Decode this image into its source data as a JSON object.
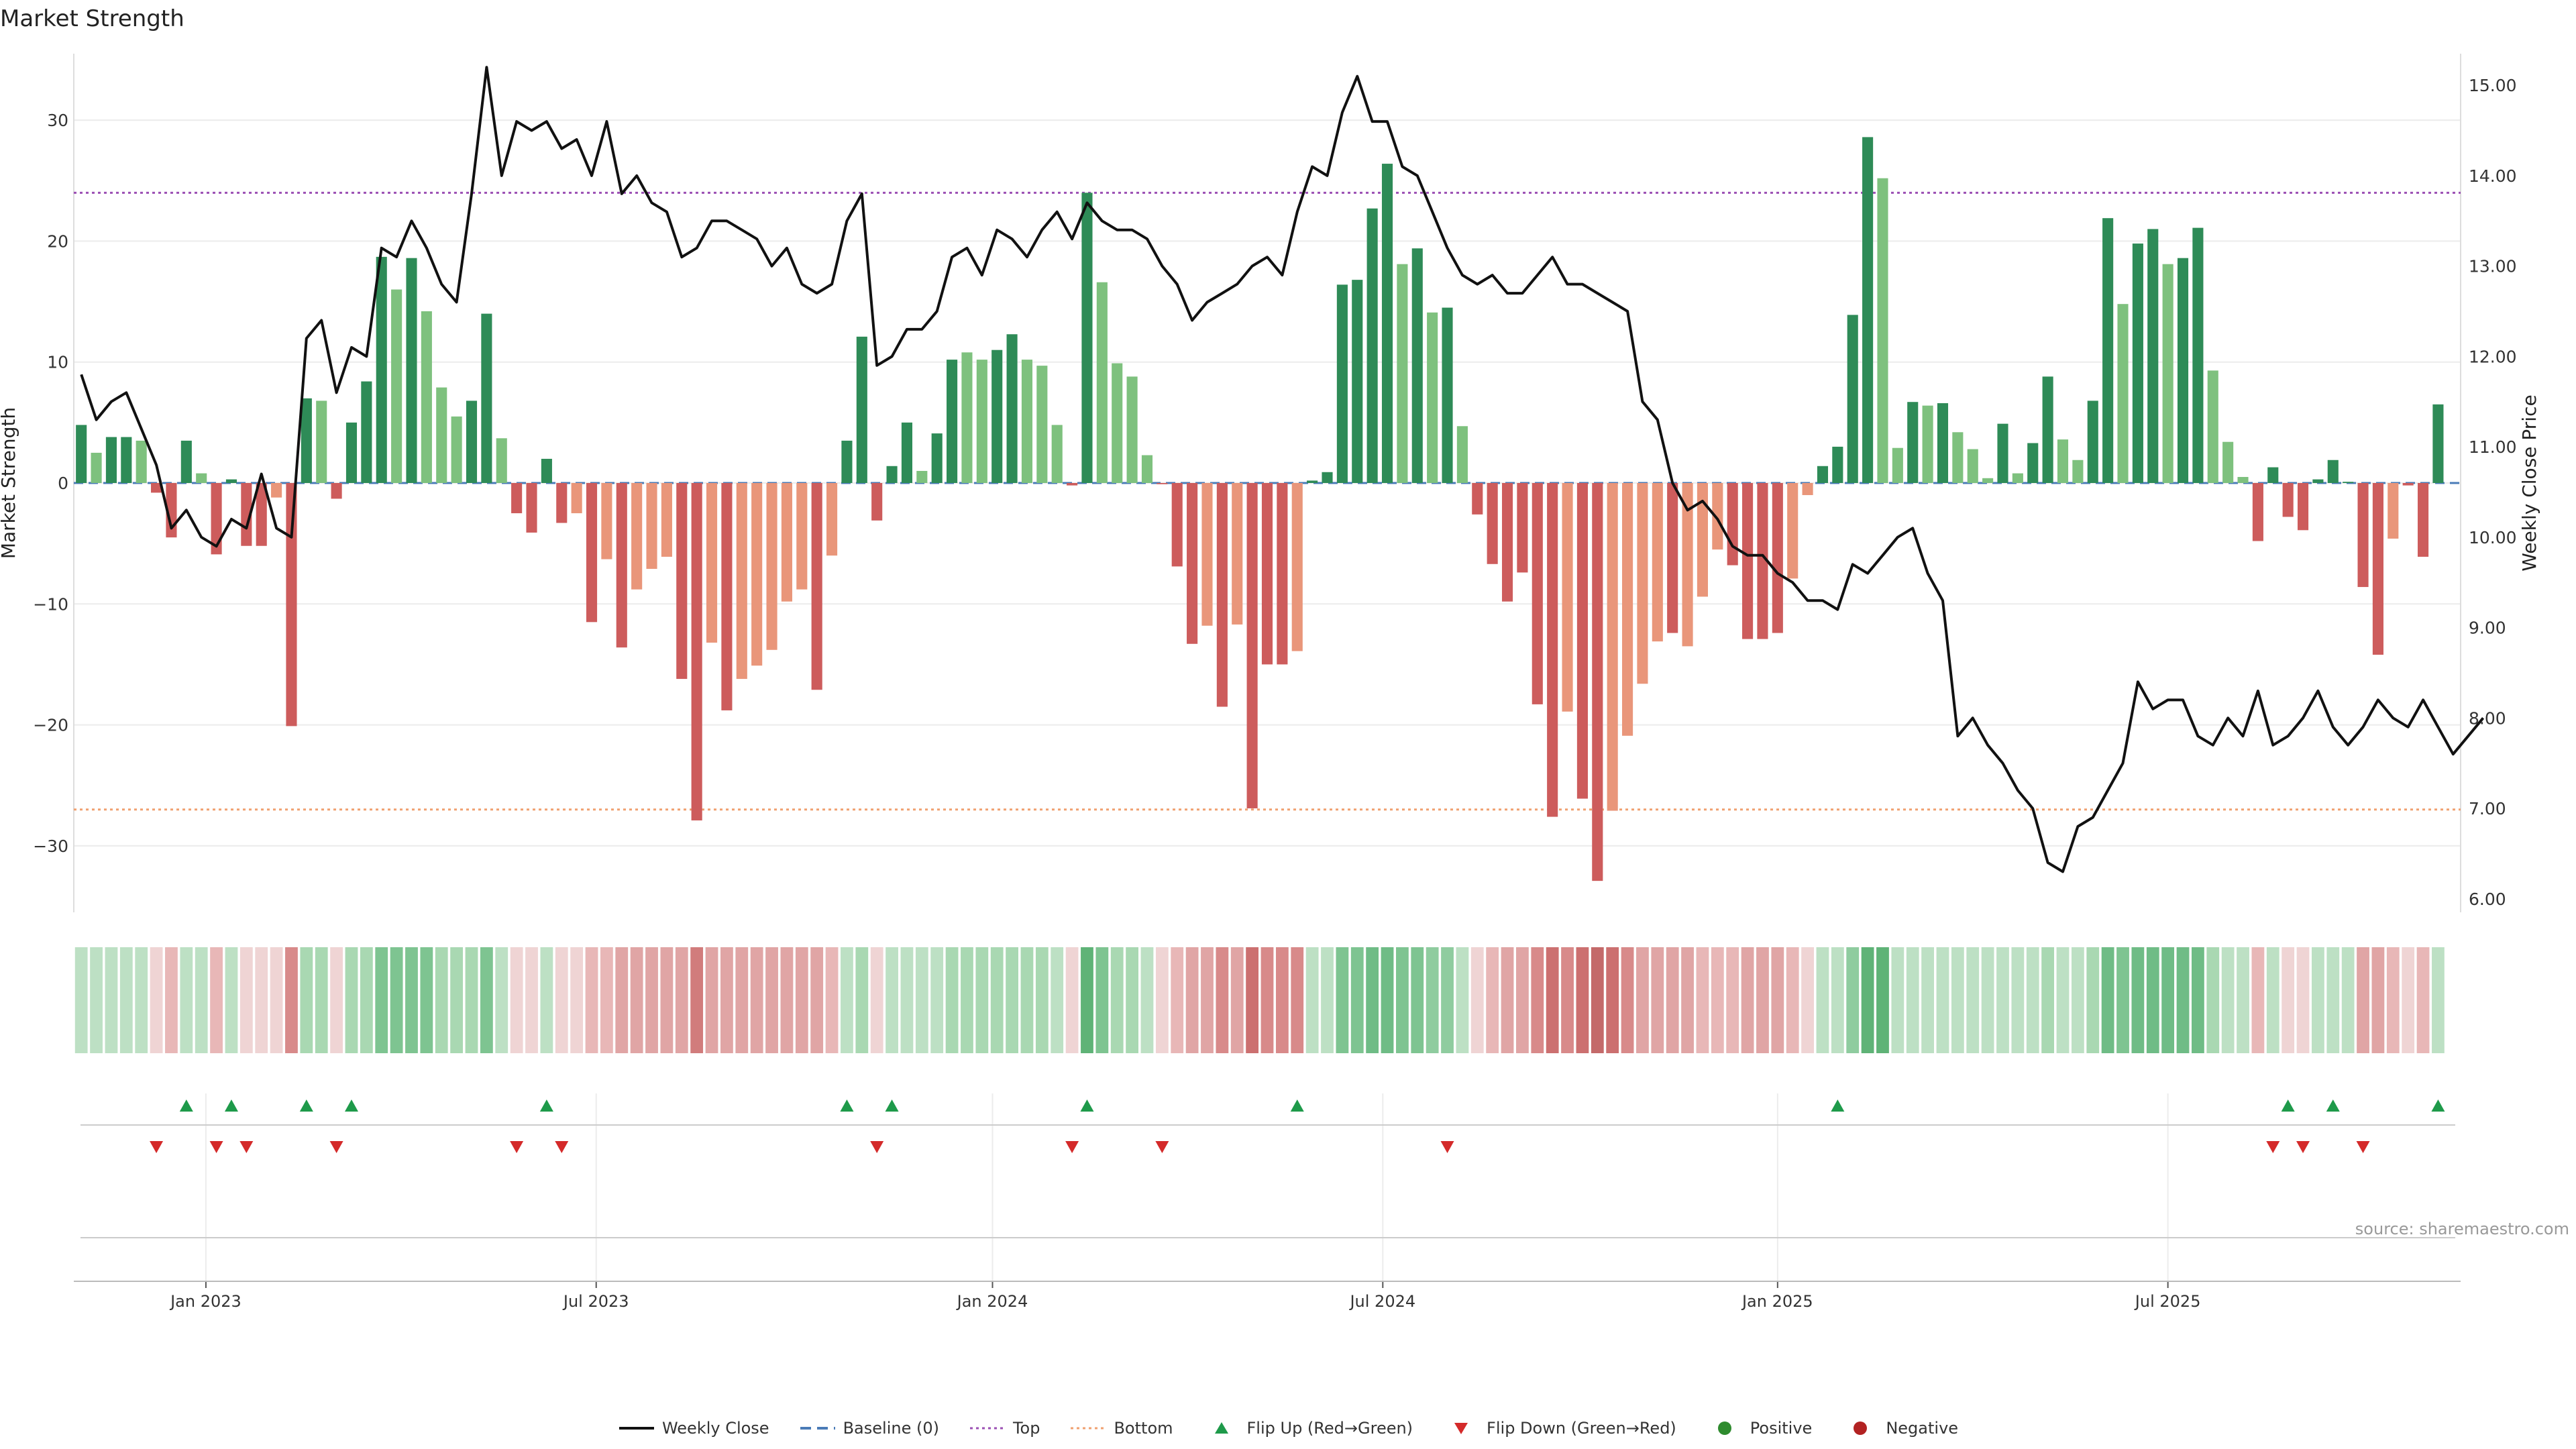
{
  "chart_data": {
    "type": "bar",
    "title": "Market Strength",
    "source": "source: sharemaestro.com",
    "y_left_label": "Market Strength",
    "y_right_label": "Weekly Close Price",
    "y_left_ticks": [
      30,
      20,
      10,
      0,
      -10,
      -20,
      -30
    ],
    "y_left_tick_labels": [
      "30",
      "20",
      "10",
      "0",
      "−10",
      "−20",
      "−30"
    ],
    "y_right_ticks": [
      15,
      14,
      13,
      12,
      11,
      10,
      9,
      8,
      7,
      6
    ],
    "y_right_tick_labels": [
      "15.00",
      "14.00",
      "13.00",
      "12.00",
      "11.00",
      "10.00",
      "9.00",
      "8.00",
      "7.00",
      "6.00"
    ],
    "y_left_range": [
      -35.5,
      35.5
    ],
    "y_right_range": [
      5.85,
      15.35
    ],
    "top_line": 24,
    "bottom_line": -27,
    "x_tick_labels": [
      "Jan 2023",
      "Jul 2023",
      "Jan 2024",
      "Jul 2024",
      "Jan 2025",
      "Jul 2025"
    ],
    "x_tick_weeks": [
      8.3,
      34.3,
      60.7,
      86.7,
      113.0,
      139.0
    ],
    "weeks_count": 159,
    "strength": [
      4.8,
      2.5,
      3.8,
      3.8,
      3.5,
      -0.8,
      -4.5,
      3.5,
      0.8,
      -5.9,
      0.3,
      -5.2,
      -5.2,
      -1.2,
      -20.1,
      7.0,
      6.8,
      -1.3,
      5.0,
      8.4,
      18.7,
      16.0,
      18.6,
      14.2,
      7.9,
      5.5,
      6.8,
      14.0,
      3.7,
      -2.5,
      -4.1,
      2.0,
      -3.3,
      -2.5,
      -11.5,
      -6.3,
      -13.6,
      -8.8,
      -7.1,
      -6.1,
      -16.2,
      -27.9,
      -13.2,
      -18.8,
      -16.2,
      -15.1,
      -13.8,
      -9.8,
      -8.8,
      -17.1,
      -6.0,
      3.5,
      12.1,
      -3.1,
      1.4,
      5.0,
      1.0,
      4.1,
      10.2,
      10.8,
      10.2,
      11.0,
      12.3,
      10.2,
      9.7,
      4.8,
      -0.2,
      24.0,
      16.6,
      9.9,
      8.8,
      2.3,
      -0.1,
      -6.9,
      -13.3,
      -11.8,
      -18.5,
      -11.7,
      -26.9,
      -15.0,
      -15.0,
      -13.9,
      0.2,
      0.9,
      16.4,
      16.8,
      22.7,
      26.4,
      18.1,
      19.4,
      14.1,
      14.5,
      4.7,
      -2.6,
      -6.7,
      -9.8,
      -7.4,
      -18.3,
      -27.6,
      -18.9,
      -26.1,
      -32.9,
      -27.1,
      -20.9,
      -16.6,
      -13.1,
      -12.4,
      -13.5,
      -9.4,
      -5.5,
      -6.8,
      -12.9,
      -12.9,
      -12.4,
      -7.9,
      -1.0,
      1.4,
      3.0,
      13.9,
      28.6,
      25.2,
      2.9,
      6.7,
      6.4,
      6.6,
      4.2,
      2.8,
      0.4,
      4.9,
      0.8,
      3.3,
      8.8,
      3.6,
      1.9,
      6.8,
      21.9,
      14.8,
      19.8,
      21.0,
      18.1,
      18.6,
      21.1,
      9.3,
      3.4,
      0.5,
      -4.8,
      1.3,
      -2.8,
      -3.9,
      0.3,
      1.9,
      0.1,
      -8.6,
      -14.2,
      -4.6,
      -0.2,
      -6.1,
      6.5
    ],
    "strength_colors": [
      "#2e8b57",
      "#7ec17e",
      "#2e8b57",
      "#2e8b57",
      "#7ec17e",
      "#cd5c5c",
      "#cd5c5c",
      "#2e8b57",
      "#7ec17e",
      "#cd5c5c",
      "#2e8b57",
      "#cd5c5c",
      "#cd5c5c",
      "#e9967a",
      "#cd5c5c",
      "#2e8b57",
      "#7ec17e",
      "#cd5c5c",
      "#2e8b57",
      "#2e8b57",
      "#2e8b57",
      "#7ec17e",
      "#2e8b57",
      "#7ec17e",
      "#7ec17e",
      "#7ec17e",
      "#2e8b57",
      "#2e8b57",
      "#7ec17e",
      "#cd5c5c",
      "#cd5c5c",
      "#2e8b57",
      "#cd5c5c",
      "#e9967a",
      "#cd5c5c",
      "#e9967a",
      "#cd5c5c",
      "#e9967a",
      "#e9967a",
      "#e9967a",
      "#cd5c5c",
      "#cd5c5c",
      "#e9967a",
      "#cd5c5c",
      "#e9967a",
      "#e9967a",
      "#e9967a",
      "#e9967a",
      "#e9967a",
      "#cd5c5c",
      "#e9967a",
      "#2e8b57",
      "#2e8b57",
      "#cd5c5c",
      "#2e8b57",
      "#2e8b57",
      "#7ec17e",
      "#2e8b57",
      "#2e8b57",
      "#7ec17e",
      "#7ec17e",
      "#2e8b57",
      "#2e8b57",
      "#7ec17e",
      "#7ec17e",
      "#7ec17e",
      "#cd5c5c",
      "#2e8b57",
      "#7ec17e",
      "#7ec17e",
      "#7ec17e",
      "#7ec17e",
      "#cd5c5c",
      "#cd5c5c",
      "#cd5c5c",
      "#e9967a",
      "#cd5c5c",
      "#e9967a",
      "#cd5c5c",
      "#cd5c5c",
      "#cd5c5c",
      "#e9967a",
      "#2e8b57",
      "#2e8b57",
      "#2e8b57",
      "#2e8b57",
      "#2e8b57",
      "#2e8b57",
      "#7ec17e",
      "#2e8b57",
      "#7ec17e",
      "#2e8b57",
      "#7ec17e",
      "#cd5c5c",
      "#cd5c5c",
      "#cd5c5c",
      "#cd5c5c",
      "#cd5c5c",
      "#cd5c5c",
      "#e9967a",
      "#cd5c5c",
      "#cd5c5c",
      "#e9967a",
      "#e9967a",
      "#e9967a",
      "#e9967a",
      "#cd5c5c",
      "#e9967a",
      "#e9967a",
      "#e9967a",
      "#cd5c5c",
      "#cd5c5c",
      "#cd5c5c",
      "#cd5c5c",
      "#e9967a",
      "#e9967a",
      "#2e8b57",
      "#2e8b57",
      "#2e8b57",
      "#2e8b57",
      "#7ec17e",
      "#7ec17e",
      "#2e8b57",
      "#7ec17e",
      "#2e8b57",
      "#7ec17e",
      "#7ec17e",
      "#7ec17e",
      "#2e8b57",
      "#7ec17e",
      "#2e8b57",
      "#2e8b57",
      "#7ec17e",
      "#7ec17e",
      "#2e8b57",
      "#2e8b57",
      "#7ec17e",
      "#2e8b57",
      "#2e8b57",
      "#7ec17e",
      "#2e8b57",
      "#2e8b57",
      "#7ec17e",
      "#7ec17e",
      "#7ec17e",
      "#cd5c5c",
      "#2e8b57",
      "#cd5c5c",
      "#cd5c5c",
      "#2e8b57",
      "#2e8b57",
      "#2e8b57",
      "#cd5c5c",
      "#cd5c5c",
      "#e9967a",
      "#cd5c5c",
      "#cd5c5c",
      "#2e8b57"
    ],
    "weekly_close": [
      11.8,
      11.3,
      11.5,
      11.6,
      11.2,
      10.8,
      10.1,
      10.3,
      10.0,
      9.9,
      10.2,
      10.1,
      10.7,
      10.1,
      10.0,
      12.2,
      12.4,
      11.6,
      12.1,
      12.0,
      13.2,
      13.1,
      13.5,
      13.2,
      12.8,
      12.6,
      13.8,
      15.2,
      14.0,
      14.6,
      14.5,
      14.6,
      14.3,
      14.4,
      14.0,
      14.6,
      13.8,
      14.0,
      13.7,
      13.6,
      13.1,
      13.2,
      13.5,
      13.5,
      13.4,
      13.3,
      13.0,
      13.2,
      12.8,
      12.7,
      12.8,
      13.5,
      13.8,
      11.9,
      12.0,
      12.3,
      12.3,
      12.5,
      13.1,
      13.2,
      12.9,
      13.4,
      13.3,
      13.1,
      13.4,
      13.6,
      13.3,
      13.7,
      13.5,
      13.4,
      13.4,
      13.3,
      13.0,
      12.8,
      12.4,
      12.6,
      12.7,
      12.8,
      13.0,
      13.1,
      12.9,
      13.6,
      14.1,
      14.0,
      14.7,
      15.1,
      14.6,
      14.6,
      14.1,
      14.0,
      13.6,
      13.2,
      12.9,
      12.8,
      12.9,
      12.7,
      12.7,
      12.9,
      13.1,
      12.8,
      12.8,
      12.7,
      12.6,
      12.5,
      11.5,
      11.3,
      10.6,
      10.3,
      10.4,
      10.2,
      9.9,
      9.8,
      9.8,
      9.6,
      9.5,
      9.3,
      9.3,
      9.2,
      9.7,
      9.6,
      9.8,
      10.0,
      10.1,
      9.6,
      9.3,
      7.8,
      8.0,
      7.7,
      7.5,
      7.2,
      7.0,
      6.4,
      6.3,
      6.8,
      6.9,
      7.2,
      7.5,
      8.4,
      8.1,
      8.2,
      8.2,
      7.8,
      7.7,
      8.0,
      7.8,
      8.3,
      7.7,
      7.8,
      8.0,
      8.3,
      7.9,
      7.7,
      7.9,
      8.2,
      8.0,
      7.9,
      8.2,
      7.9,
      7.6,
      7.8,
      8.0
    ],
    "heatmap_colors": [
      "#bde0c4",
      "#bde0c4",
      "#bde0c4",
      "#bde0c4",
      "#bde0c4",
      "#efd4d4",
      "#e8b7b7",
      "#bde0c4",
      "#bde0c4",
      "#e8b7b7",
      "#bde0c4",
      "#efd4d4",
      "#efd4d4",
      "#efd4d4",
      "#d88a8a",
      "#a9d8b2",
      "#a9d8b2",
      "#efd4d4",
      "#a9d8b2",
      "#a9d8b2",
      "#7ec491",
      "#7ec491",
      "#7ec491",
      "#7ec491",
      "#a9d8b2",
      "#a9d8b2",
      "#a9d8b2",
      "#7ec491",
      "#bde0c4",
      "#efd4d4",
      "#efd4d4",
      "#bde0c4",
      "#efd4d4",
      "#efd4d4",
      "#e8b7b7",
      "#e8b7b7",
      "#e0a5a5",
      "#e0a5a5",
      "#e0a5a5",
      "#e0a5a5",
      "#e0a5a5",
      "#d17c7c",
      "#e0a5a5",
      "#e0a5a5",
      "#e0a5a5",
      "#e0a5a5",
      "#e0a5a5",
      "#e0a5a5",
      "#e0a5a5",
      "#e0a5a5",
      "#e8b7b7",
      "#bde0c4",
      "#a9d8b2",
      "#efd4d4",
      "#bde0c4",
      "#bde0c4",
      "#bde0c4",
      "#bde0c4",
      "#a9d8b2",
      "#a9d8b2",
      "#a9d8b2",
      "#a9d8b2",
      "#a9d8b2",
      "#a9d8b2",
      "#a9d8b2",
      "#bde0c4",
      "#efd4d4",
      "#5fb377",
      "#7ec491",
      "#a9d8b2",
      "#a9d8b2",
      "#bde0c4",
      "#efd4d4",
      "#e8b7b7",
      "#e0a5a5",
      "#e0a5a5",
      "#d88a8a",
      "#e0a5a5",
      "#cc7070",
      "#d88a8a",
      "#d88a8a",
      "#d88a8a",
      "#bde0c4",
      "#bde0c4",
      "#7ec491",
      "#7ec491",
      "#6fbc86",
      "#6fbc86",
      "#7ec491",
      "#7ec491",
      "#8fcc9f",
      "#8fcc9f",
      "#bde0c4",
      "#efd4d4",
      "#e8b7b7",
      "#e0a5a5",
      "#e0a5a5",
      "#d88a8a",
      "#cc7070",
      "#d88a8a",
      "#cc7070",
      "#c46a6a",
      "#cc7070",
      "#d88a8a",
      "#e0a5a5",
      "#e0a5a5",
      "#e0a5a5",
      "#e0a5a5",
      "#e8b7b7",
      "#e8b7b7",
      "#e8b7b7",
      "#e0a5a5",
      "#e0a5a5",
      "#e0a5a5",
      "#e8b7b7",
      "#efd4d4",
      "#bde0c4",
      "#bde0c4",
      "#8fcc9f",
      "#5fb377",
      "#5fb377",
      "#bde0c4",
      "#bde0c4",
      "#bde0c4",
      "#bde0c4",
      "#bde0c4",
      "#bde0c4",
      "#bde0c4",
      "#bde0c4",
      "#bde0c4",
      "#bde0c4",
      "#a9d8b2",
      "#bde0c4",
      "#bde0c4",
      "#a9d8b2",
      "#6fbc86",
      "#7ec491",
      "#6fbc86",
      "#6fbc86",
      "#6fbc86",
      "#6fbc86",
      "#6fbc86",
      "#a9d8b2",
      "#bde0c4",
      "#bde0c4",
      "#e8b7b7",
      "#bde0c4",
      "#efd4d4",
      "#efd4d4",
      "#bde0c4",
      "#bde0c4",
      "#bde0c4",
      "#e0a5a5",
      "#e0a5a5",
      "#e8b7b7",
      "#efd4d4",
      "#e8b7b7",
      "#bde0c4"
    ],
    "flip_up_weeks": [
      7,
      10,
      15,
      18,
      31,
      51,
      54,
      67,
      81,
      117,
      147,
      150,
      157
    ],
    "flip_down_weeks": [
      5,
      9,
      11,
      17,
      29,
      32,
      53,
      66,
      72,
      91,
      146,
      148,
      152
    ],
    "legend": [
      {
        "label": "Weekly Close",
        "kind": "line",
        "color": "#111111"
      },
      {
        "label": "Baseline (0)",
        "kind": "dash",
        "color": "#4a7bb7"
      },
      {
        "label": "Top",
        "kind": "dot",
        "color": "#9b4fb4"
      },
      {
        "label": "Bottom",
        "kind": "dot",
        "color": "#f0a070"
      },
      {
        "label": "Flip Up (Red→Green)",
        "kind": "up",
        "color": "#1e9a4a"
      },
      {
        "label": "Flip Down (Green→Red)",
        "kind": "down",
        "color": "#d42a2a"
      },
      {
        "label": "Positive",
        "kind": "circle",
        "color": "#2e8b2e"
      },
      {
        "label": "Negative",
        "kind": "circle",
        "color": "#b22222"
      }
    ]
  }
}
